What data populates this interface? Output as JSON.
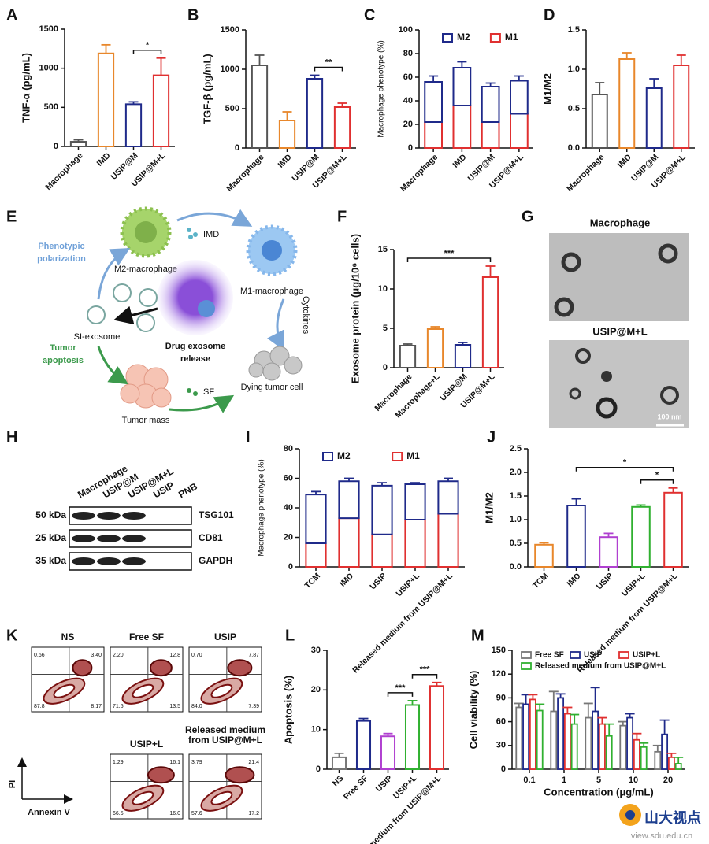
{
  "chart_data": [
    {
      "panel": "A",
      "type": "bar",
      "y_label": "TNF-α (pg/mL)",
      "categories": [
        "Macrophage",
        "IMD",
        "USIP@M",
        "USIP@M+L"
      ],
      "values": [
        60,
        1190,
        540,
        910
      ],
      "errors": [
        25,
        110,
        30,
        220
      ],
      "colors": [
        "#555555",
        "#e8872b",
        "#1f2a8a",
        "#e03030"
      ],
      "ylim": [
        0,
        1500
      ],
      "yticks": [
        0,
        500,
        1000,
        1500
      ],
      "significance": [
        {
          "between": [
            "USIP@M",
            "USIP@M+L"
          ],
          "label": "*"
        }
      ]
    },
    {
      "panel": "B",
      "type": "bar",
      "y_label": "TGF-β (pg/mL)",
      "categories": [
        "Macrophage",
        "IMD",
        "USIP@M",
        "USIP@M+L"
      ],
      "values": [
        1050,
        350,
        880,
        520
      ],
      "errors": [
        130,
        110,
        45,
        50
      ],
      "colors": [
        "#555555",
        "#e8872b",
        "#1f2a8a",
        "#e03030"
      ],
      "ylim": [
        0,
        1500
      ],
      "yticks": [
        0,
        500,
        1000,
        1500
      ],
      "significance": [
        {
          "between": [
            "USIP@M",
            "USIP@M+L"
          ],
          "label": "**"
        }
      ]
    },
    {
      "panel": "C",
      "type": "stacked_bar",
      "y_label": "Macrophage phenotype (%)",
      "categories": [
        "Macrophage",
        "IMD",
        "USIP@M",
        "USIP@M+L"
      ],
      "series": [
        {
          "name": "M1",
          "color": "#e03030",
          "values": [
            22,
            36,
            22,
            29
          ],
          "errors": [
            3,
            5,
            1,
            1
          ]
        },
        {
          "name": "M2",
          "color": "#1f2a8a",
          "values": [
            34,
            32,
            30,
            28
          ],
          "errors": [
            5,
            5,
            3,
            4
          ]
        }
      ],
      "ylim": [
        0,
        100
      ],
      "yticks": [
        0,
        20,
        40,
        60,
        80,
        100
      ]
    },
    {
      "panel": "D",
      "type": "bar",
      "y_label": "M1/M2",
      "categories": [
        "Macrophage",
        "IMD",
        "USIP@M",
        "USIP@M+L"
      ],
      "values": [
        0.68,
        1.13,
        0.76,
        1.05
      ],
      "errors": [
        0.15,
        0.08,
        0.12,
        0.13
      ],
      "colors": [
        "#555555",
        "#e8872b",
        "#1f2a8a",
        "#e03030"
      ],
      "ylim": [
        0,
        1.5
      ],
      "yticks": [
        {
          "value": 0,
          "label": "0.0"
        },
        {
          "value": 0.5,
          "label": "0.5"
        },
        {
          "value": 1,
          "label": "1.0"
        },
        {
          "value": 1.5,
          "label": "1.5"
        }
      ]
    },
    {
      "panel": "F",
      "type": "bar",
      "y_label": "Exosome protein (μg/10⁶ cells)",
      "categories": [
        "Macrophage",
        "Macrophage+L",
        "USIP@M",
        "USIP@M+L"
      ],
      "values": [
        2.8,
        4.9,
        2.9,
        11.5
      ],
      "errors": [
        0.2,
        0.3,
        0.3,
        1.4
      ],
      "colors": [
        "#555555",
        "#e8872b",
        "#1f2a8a",
        "#e03030"
      ],
      "ylim": [
        0,
        15
      ],
      "yticks": [
        0,
        5,
        10,
        15
      ],
      "significance": [
        {
          "between": [
            "Macrophage",
            "USIP@M+L"
          ],
          "label": "***"
        }
      ]
    },
    {
      "panel": "I",
      "type": "stacked_bar",
      "y_label": "Macrophage phenotype (%)",
      "categories": [
        "TCM",
        "IMD",
        "USIP",
        "USIP+L",
        "Released medium from USIP@M+L"
      ],
      "series": [
        {
          "name": "M1",
          "color": "#e03030",
          "values": [
            16,
            33,
            22,
            32,
            36
          ],
          "errors": [
            1.5,
            2,
            1.5,
            1.5,
            2
          ]
        },
        {
          "name": "M2",
          "color": "#1f2a8a",
          "values": [
            33,
            25,
            33,
            24,
            22
          ],
          "errors": [
            2,
            2,
            2,
            1,
            2
          ]
        }
      ],
      "ylim": [
        0,
        80
      ],
      "yticks": [
        0,
        20,
        40,
        60,
        80
      ]
    },
    {
      "panel": "J",
      "type": "bar",
      "y_label": "M1/M2",
      "categories": [
        "TCM",
        "IMD",
        "USIP",
        "USIP+L",
        "Released medium from USIP@M+L"
      ],
      "values": [
        0.47,
        1.3,
        0.63,
        1.27,
        1.57
      ],
      "errors": [
        0.04,
        0.14,
        0.08,
        0.04,
        0.1
      ],
      "colors": [
        "#e8872b",
        "#1f2a8a",
        "#b040d0",
        "#30b030",
        "#e03030"
      ],
      "ylim": [
        0,
        2.5
      ],
      "yticks": [
        {
          "value": 0,
          "label": "0.0"
        },
        {
          "value": 0.5,
          "label": "0.5"
        },
        {
          "value": 1,
          "label": "1.0"
        },
        {
          "value": 1.5,
          "label": "1.5"
        },
        {
          "value": 2,
          "label": "2.0"
        },
        {
          "value": 2.5,
          "label": "2.5"
        }
      ],
      "significance": [
        {
          "between": [
            "USIP+L",
            "Released medium from USIP@M+L"
          ],
          "label": "*"
        },
        {
          "between": [
            "IMD",
            "Released medium from USIP@M+L"
          ],
          "label": "*"
        }
      ]
    },
    {
      "panel": "L",
      "type": "bar",
      "y_label": "Apoptosis (%)",
      "categories": [
        "NS",
        "Free SF",
        "USIP",
        "USIP+L",
        "Released medium from USIP@M+L"
      ],
      "values": [
        3,
        12.2,
        8.3,
        16.2,
        21
      ],
      "errors": [
        1,
        0.6,
        0.7,
        1.1,
        0.9
      ],
      "colors": [
        "#777777",
        "#1f2a8a",
        "#b040d0",
        "#30b030",
        "#e03030"
      ],
      "ylim": [
        0,
        30
      ],
      "yticks": [
        0,
        10,
        20,
        30
      ],
      "significance": [
        {
          "between": [
            "USIP",
            "USIP+L"
          ],
          "label": "***"
        },
        {
          "between": [
            "USIP+L",
            "Released medium from USIP@M+L"
          ],
          "label": "***"
        }
      ]
    },
    {
      "panel": "M",
      "type": "grouped_bar",
      "y_label": "Cell viability (%)",
      "x_label": "Concentration (μg/mL)",
      "categories": [
        "0.1",
        "1",
        "5",
        "10",
        "20"
      ],
      "series": [
        {
          "name": "Free SF",
          "color": "#777777",
          "values": [
            78,
            73,
            65,
            55,
            22
          ],
          "errors": [
            5,
            25,
            18,
            5,
            8
          ]
        },
        {
          "name": "USIP",
          "color": "#1f2a8a",
          "values": [
            82,
            90,
            73,
            65,
            44
          ],
          "errors": [
            12,
            5,
            30,
            5,
            18
          ]
        },
        {
          "name": "USIP+L",
          "color": "#e03030",
          "values": [
            88,
            70,
            57,
            37,
            15
          ],
          "errors": [
            6,
            8,
            8,
            8,
            5
          ]
        },
        {
          "name": "Released medium from USIP@M+L",
          "color": "#30b030",
          "values": [
            74,
            57,
            42,
            28,
            7
          ],
          "errors": [
            8,
            12,
            15,
            5,
            8
          ]
        }
      ],
      "ylim": [
        0,
        150
      ],
      "yticks": [
        0,
        30,
        60,
        90,
        120,
        150
      ]
    }
  ],
  "diagram": {
    "panel": "E",
    "phenotypic_polarization": [
      "Phenotypic",
      "polarization"
    ],
    "m2": "M2-macrophage",
    "imd": "IMD",
    "m1": "M1-macrophage",
    "cytokines": "Cytokines",
    "exosome": "SI-exosome",
    "release": [
      "Drug exosome",
      "release"
    ],
    "apoptosis": [
      "Tumor",
      "apoptosis"
    ],
    "tumor_mass": "Tumor mass",
    "sf": "SF",
    "dying": "Dying tumor cell"
  },
  "tem": {
    "panel": "G",
    "top": "Macrophage",
    "bottom": "USIP@M+L",
    "scale": "100 nm"
  },
  "western_blot": {
    "panel": "H",
    "lanes": [
      "Macrophage",
      "USIP@M",
      "USIP@M+L",
      "USIP",
      "PNB"
    ],
    "rows": [
      {
        "size": "50 kDa",
        "protein": "TSG101"
      },
      {
        "size": "25 kDa",
        "protein": "CD81"
      },
      {
        "size": "35 kDa",
        "protein": "GAPDH"
      }
    ]
  },
  "flow_cytometry": {
    "panel": "K",
    "y_axis": "PI",
    "x_axis": "Annexin V",
    "plots": [
      {
        "title": "NS",
        "quadrants": [
          "0.66",
          "3.40",
          "87.8",
          "8.17"
        ]
      },
      {
        "title": "Free SF",
        "quadrants": [
          "2.20",
          "12.8",
          "71.5",
          "13.5"
        ]
      },
      {
        "title": "USIP",
        "quadrants": [
          "0.70",
          "7.87",
          "84.0",
          "7.39"
        ]
      },
      {
        "title": "USIP+L",
        "quadrants": [
          "1.29",
          "16.1",
          "66.5",
          "16.0"
        ]
      },
      {
        "title": [
          "Released medium",
          "from USIP@M+L"
        ],
        "quadrants": [
          "3.79",
          "21.4",
          "57.6",
          "17.2"
        ]
      }
    ]
  },
  "watermark": {
    "name": "山大视点",
    "url": "view.sdu.edu.cn"
  }
}
